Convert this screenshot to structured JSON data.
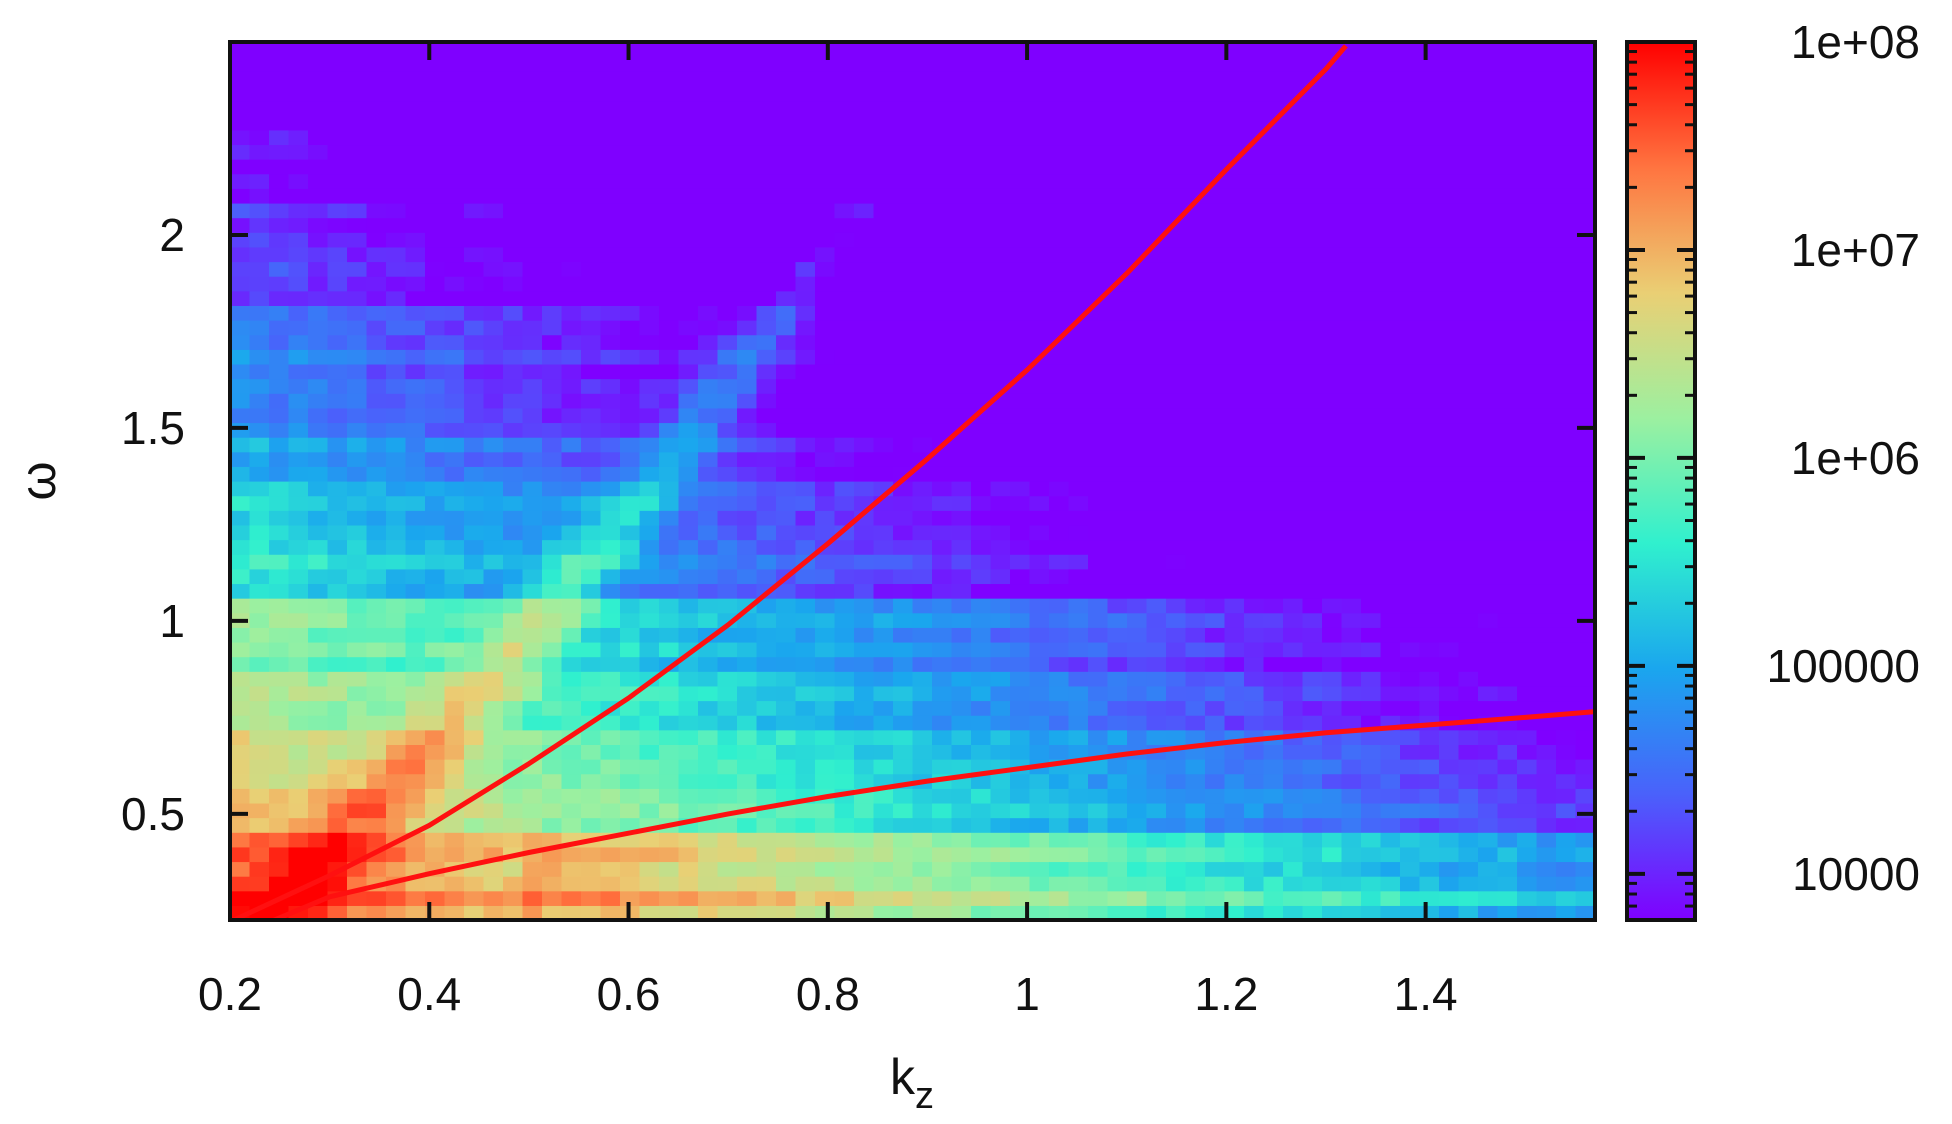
{
  "chart_data": {
    "type": "heatmap",
    "title": "",
    "xlabel": "k",
    "xlabel_subscript": "z",
    "ylabel": "ω",
    "xlim": [
      0.2,
      1.57
    ],
    "ylim": [
      0.225,
      2.5
    ],
    "x_ticks": [
      0.2,
      0.4,
      0.6,
      0.8,
      1,
      1.2,
      1.4
    ],
    "x_tick_labels": [
      "0.2",
      "0.4",
      "0.6",
      "0.8",
      "1",
      "1.2",
      "1.4"
    ],
    "y_ticks": [
      0.5,
      1,
      1.5,
      2
    ],
    "y_tick_labels": [
      "0.5",
      "1",
      "1.5",
      "2"
    ],
    "colorbar": {
      "scale": "log",
      "range": [
        6000,
        100000000
      ],
      "ticks": [
        10000,
        100000,
        1000000,
        10000000,
        100000000
      ],
      "tick_labels": [
        "10000",
        "100000",
        "1e+06",
        "1e+07",
        "1e+08"
      ],
      "colormap": [
        "#7f00ff",
        "#4a61fb",
        "#1aa6ee",
        "#30f0ce",
        "#9cf0a0",
        "#eacf74",
        "#ff7440",
        "#ff0000"
      ]
    },
    "heatmap": {
      "description_values": "approximate log10 intensity; high near low k_z and low omega, decaying toward high k_z and high omega",
      "x_bins": 70,
      "y_bins": 60
    },
    "series": [
      {
        "type": "line",
        "color": "#ff1010",
        "x": [
          0.2,
          0.3,
          0.4,
          0.5,
          0.6,
          0.7,
          0.8,
          0.9,
          1.0,
          1.1,
          1.2,
          1.3,
          1.32
        ],
        "y": [
          0.22,
          0.34,
          0.47,
          0.63,
          0.8,
          0.99,
          1.2,
          1.42,
          1.65,
          1.9,
          2.17,
          2.43,
          2.49
        ]
      },
      {
        "type": "line",
        "color": "#ff1010",
        "x": [
          0.24,
          0.3,
          0.4,
          0.5,
          0.6,
          0.7,
          0.8,
          0.9,
          1.0,
          1.1,
          1.2,
          1.3,
          1.4,
          1.5,
          1.57
        ],
        "y": [
          0.22,
          0.285,
          0.345,
          0.4,
          0.45,
          0.5,
          0.545,
          0.585,
          0.62,
          0.655,
          0.685,
          0.71,
          0.73,
          0.75,
          0.765
        ]
      }
    ]
  }
}
